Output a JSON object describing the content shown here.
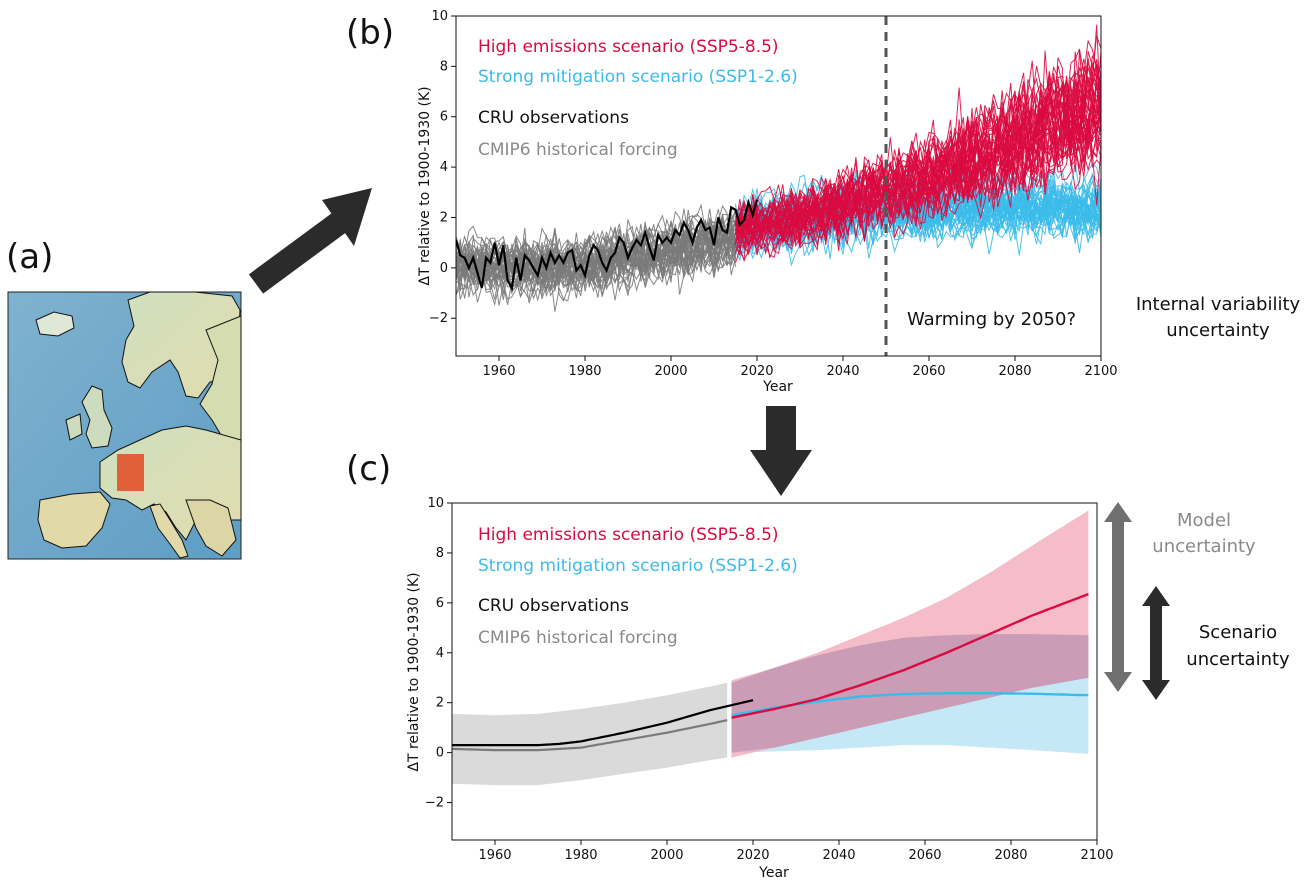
{
  "panels": {
    "a": "(a)",
    "b": "(b)",
    "c": "(c)"
  },
  "side_labels": {
    "internal_line1": "Internal variability",
    "internal_line2": "uncertainty",
    "model_line1": "Model",
    "model_line2": "uncertainty",
    "scenario_line1": "Scenario",
    "scenario_line2": "uncertainty"
  },
  "colors": {
    "ssp585": "#d90b40",
    "ssp126": "#3bbbea",
    "observations": "#000000",
    "historical": "#7a7a7a",
    "ssp585_band": "#f2a6b8",
    "ssp126_band": "#bfe6f6",
    "historical_band": "#d8d8d8",
    "overlap_band": "#b88aa8",
    "arrow": "#2b2b2b",
    "map_region": "#e2552f"
  },
  "chart_data": [
    {
      "type": "line",
      "panel": "b",
      "xlabel": "Year",
      "ylabel": "ΔT relative to 1900-1930 (K)",
      "xlim": [
        1950,
        2100
      ],
      "ylim": [
        -3.5,
        10
      ],
      "xticks": [
        1960,
        1980,
        2000,
        2020,
        2040,
        2060,
        2080,
        2100
      ],
      "yticks": [
        -2,
        0,
        2,
        4,
        6,
        8,
        10
      ],
      "legend": [
        "High emissions scenario (SSP5-8.5)",
        "Strong mitigation scenario (SSP1-2.6)",
        "CRU observations",
        "CMIP6 historical forcing"
      ],
      "legend_placement": "top-left",
      "vline": {
        "x": 2050,
        "style": "dashed",
        "label": "Warming by 2050?"
      },
      "series": [
        {
          "name": "High emissions scenario (SSP5-8.5)",
          "kind": "ensemble",
          "members": 40,
          "x": [
            2015,
            2025,
            2035,
            2045,
            2055,
            2065,
            2075,
            2085,
            2095,
            2100
          ],
          "mean": [
            1.5,
            1.9,
            2.3,
            2.8,
            3.3,
            4.0,
            4.7,
            5.4,
            6.1,
            6.4
          ],
          "spread": [
            1.3,
            1.5,
            1.6,
            1.8,
            2.0,
            2.3,
            2.6,
            2.8,
            3.0,
            3.1
          ]
        },
        {
          "name": "Strong mitigation scenario (SSP1-2.6)",
          "kind": "ensemble",
          "members": 40,
          "x": [
            2015,
            2025,
            2035,
            2045,
            2055,
            2065,
            2075,
            2085,
            2095,
            2100
          ],
          "mean": [
            1.5,
            1.8,
            2.0,
            2.2,
            2.3,
            2.35,
            2.4,
            2.4,
            2.35,
            2.3
          ],
          "spread": [
            1.3,
            1.4,
            1.5,
            1.5,
            1.5,
            1.5,
            1.5,
            1.5,
            1.5,
            1.5
          ]
        },
        {
          "name": "CMIP6 historical forcing",
          "kind": "ensemble",
          "members": 40,
          "x": [
            1950,
            1960,
            1970,
            1980,
            1990,
            2000,
            2010,
            2015
          ],
          "mean": [
            0.15,
            0.1,
            0.1,
            0.2,
            0.5,
            0.8,
            1.15,
            1.3
          ],
          "spread": [
            1.3,
            1.3,
            1.3,
            1.3,
            1.3,
            1.3,
            1.4,
            1.4
          ]
        },
        {
          "name": "CRU observations",
          "x": [
            1950,
            1951,
            1952,
            1953,
            1954,
            1955,
            1956,
            1957,
            1958,
            1959,
            1960,
            1961,
            1962,
            1963,
            1964,
            1965,
            1966,
            1967,
            1968,
            1969,
            1970,
            1971,
            1972,
            1973,
            1974,
            1975,
            1976,
            1977,
            1978,
            1979,
            1980,
            1981,
            1982,
            1983,
            1984,
            1985,
            1986,
            1987,
            1988,
            1989,
            1990,
            1991,
            1992,
            1993,
            1994,
            1995,
            1996,
            1997,
            1998,
            1999,
            2000,
            2001,
            2002,
            2003,
            2004,
            2005,
            2006,
            2007,
            2008,
            2009,
            2010,
            2011,
            2012,
            2013,
            2014,
            2015,
            2016,
            2017,
            2018,
            2019,
            2020
          ],
          "y": [
            1.1,
            0.5,
            0.4,
            0.0,
            0.4,
            -0.2,
            -0.8,
            0.4,
            0.2,
            1.0,
            0.1,
            0.9,
            -0.5,
            -0.8,
            0.4,
            -0.5,
            0.5,
            0.3,
            0.0,
            -0.3,
            0.4,
            0.0,
            0.6,
            0.2,
            0.5,
            0.2,
            0.6,
            0.7,
            -0.1,
            0.1,
            -0.3,
            0.5,
            0.9,
            0.7,
            0.2,
            -0.1,
            0.4,
            0.6,
            1.2,
            1.0,
            0.4,
            0.8,
            1.1,
            0.9,
            1.4,
            0.8,
            0.3,
            1.3,
            1.0,
            1.2,
            1.0,
            1.5,
            1.3,
            1.8,
            1.5,
            1.0,
            1.6,
            1.9,
            1.5,
            1.6,
            0.9,
            2.0,
            1.5,
            1.4,
            2.4,
            2.3,
            1.7,
            1.9,
            2.6,
            2.1,
            2.7
          ]
        }
      ]
    },
    {
      "type": "area",
      "panel": "c",
      "xlabel": "Year",
      "ylabel": "ΔT relative to 1900-1930 (K)",
      "xlim": [
        1950,
        2100
      ],
      "ylim": [
        -3.5,
        10
      ],
      "xticks": [
        1960,
        1980,
        2000,
        2020,
        2040,
        2060,
        2080,
        2100
      ],
      "yticks": [
        -2,
        0,
        2,
        4,
        6,
        8,
        10
      ],
      "legend": [
        "High emissions scenario (SSP5-8.5)",
        "Strong mitigation scenario (SSP1-2.6)",
        "CRU observations",
        "CMIP6 historical forcing"
      ],
      "legend_placement": "top-left",
      "series": [
        {
          "name": "High emissions scenario (SSP5-8.5)",
          "x": [
            2015,
            2025,
            2035,
            2045,
            2055,
            2065,
            2075,
            2085,
            2098
          ],
          "mean": [
            1.4,
            1.75,
            2.15,
            2.7,
            3.3,
            4.0,
            4.75,
            5.5,
            6.35
          ],
          "lower": [
            -0.2,
            0.2,
            0.6,
            1.0,
            1.4,
            1.8,
            2.2,
            2.6,
            3.0
          ],
          "upper": [
            2.9,
            3.4,
            4.0,
            4.7,
            5.4,
            6.2,
            7.2,
            8.3,
            9.7
          ]
        },
        {
          "name": "Strong mitigation scenario (SSP1-2.6)",
          "x": [
            2015,
            2025,
            2035,
            2045,
            2055,
            2065,
            2075,
            2085,
            2098
          ],
          "mean": [
            1.5,
            1.8,
            2.05,
            2.25,
            2.35,
            2.38,
            2.38,
            2.36,
            2.3
          ],
          "lower": [
            0.0,
            0.05,
            0.1,
            0.2,
            0.3,
            0.3,
            0.2,
            0.1,
            -0.05
          ],
          "upper": [
            2.8,
            3.4,
            3.9,
            4.3,
            4.6,
            4.7,
            4.75,
            4.75,
            4.7
          ]
        },
        {
          "name": "CMIP6 historical forcing",
          "x": [
            1950,
            1960,
            1970,
            1980,
            1990,
            2000,
            2010,
            2014
          ],
          "mean": [
            0.15,
            0.1,
            0.1,
            0.2,
            0.5,
            0.8,
            1.15,
            1.3
          ],
          "lower": [
            -1.25,
            -1.3,
            -1.3,
            -1.1,
            -0.85,
            -0.6,
            -0.3,
            -0.2
          ],
          "upper": [
            1.55,
            1.5,
            1.55,
            1.75,
            2.0,
            2.3,
            2.65,
            2.8
          ]
        },
        {
          "name": "CRU observations",
          "x": [
            1950,
            1960,
            1970,
            1975,
            1980,
            1990,
            2000,
            2010,
            2020
          ],
          "y": [
            0.3,
            0.3,
            0.3,
            0.35,
            0.45,
            0.8,
            1.2,
            1.7,
            2.1
          ]
        }
      ]
    }
  ]
}
